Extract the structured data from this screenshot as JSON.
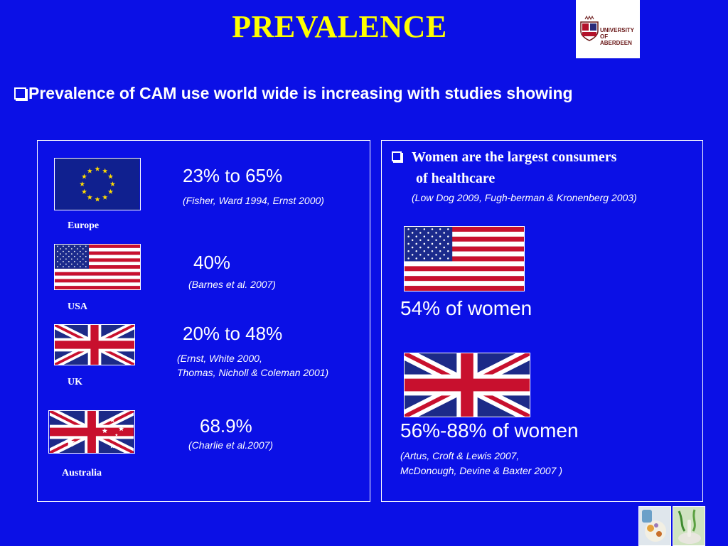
{
  "title": "PREVALENCE",
  "logo": {
    "text": "UNIVERSITY OF ABERDEEN"
  },
  "intro": "Prevalence of CAM use world wide is increasing with studies showing",
  "left_panel": {
    "europe": {
      "stat": "23% to 65%",
      "citation": "(Fisher, Ward 1994, Ernst 2000)",
      "country": "Europe"
    },
    "usa": {
      "stat": "40%",
      "citation": "(Barnes et al. 2007)",
      "country": "USA"
    },
    "uk": {
      "stat": "20% to 48%",
      "citation_line1": "(Ernst, White 2000,",
      "citation_line2": "Thomas, Nicholl & Coleman 2001)",
      "country": "UK"
    },
    "australia": {
      "stat": "68.9%",
      "citation": "(Charlie et al.2007)",
      "country": "Australia"
    }
  },
  "right_panel": {
    "heading_line1": "Women are the largest consumers",
    "heading_line2": "of healthcare",
    "heading_citation": "(Low Dog 2009, Fugh-berman & Kronenberg 2003)",
    "usa_stat": "54% of women",
    "uk_stat": "56%-88% of women",
    "uk_citation_line1": "(Artus, Croft & Lewis 2007,",
    "uk_citation_line2": "McDonough, Devine & Baxter 2007 )"
  },
  "colors": {
    "background": "#0b10e6",
    "title": "#ffff00",
    "text": "#ffffff"
  }
}
